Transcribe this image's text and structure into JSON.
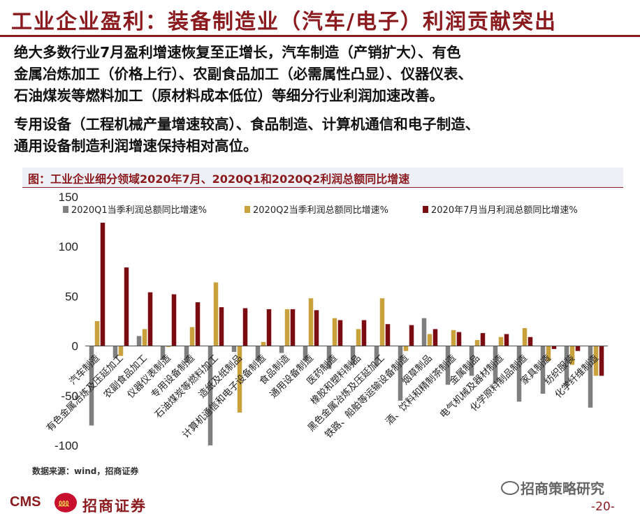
{
  "title": "工业企业盈利：装备制造业（汽车/电子）利润贡献突出",
  "paragraphs": [
    [
      "绝大多数行业7月盈利增速恢复至正增长，汽车制造（产销扩大）、有色",
      "金属冶炼加工（价格上行）、农副食品加工（必需属性凸显）、仪器仪表、",
      "石油煤炭等燃料加工（原材料成本低位）等细分行业利润加速改善。"
    ],
    [
      "专用设备（工程机械产量增速较高）、食品制造、计算机通信和电子制造、",
      "通用设备制造利润增速保持相对高位。"
    ]
  ],
  "chart_caption": "图：工业企业细分领域2020年7月、2020Q1和2020Q2利润总额同比增速",
  "chart_data": {
    "type": "bar",
    "ylim": [
      -100,
      150
    ],
    "yticks": [
      -100,
      -50,
      0,
      50,
      100,
      150
    ],
    "legend_position": "top",
    "categories": [
      "汽车制造",
      "有色金属冶炼及压延加工",
      "农副食品加工",
      "仪器仪表制造",
      "专用设备制造",
      "石油煤炭等燃料加工",
      "造纸及纸制品",
      "计算机通信和电子设备制造",
      "食品制造",
      "通用设备制造",
      "医药制造",
      "橡胶和塑料制品",
      "黑色金属冶炼及压延加工",
      "铁路、船舶等运输设备制造",
      "烟草制品",
      "酒、饮料和精制茶制造",
      "金属制品",
      "电气机械及器材制造",
      "化学原料制品制造",
      "家具制造",
      "纺织服装",
      "化学纤维制造"
    ],
    "series": [
      {
        "name": "2020Q1当季利润总额同比增速%",
        "color": "#7f7f7f",
        "values": [
          -80,
          -12,
          10,
          -14,
          -17,
          -100,
          -6,
          -15,
          -7,
          -15,
          -23,
          -19,
          -20,
          -55,
          28,
          -39,
          -30,
          -38,
          -56,
          -48,
          -40,
          -62
        ]
      },
      {
        "name": "2020Q2当季利润总额同比增速%",
        "color": "#c9a23e",
        "values": [
          25,
          -10,
          17,
          -1,
          19,
          64,
          -67,
          4,
          37,
          48,
          28,
          17,
          48,
          -5,
          12,
          16,
          6,
          9,
          18,
          -15,
          -19,
          -30
        ]
      },
      {
        "name": "2020年7月当月利润总额同比增速%",
        "color": "#7b0d12",
        "values": [
          124,
          79,
          54,
          52,
          44,
          39,
          38,
          37,
          37,
          36,
          26,
          26,
          22,
          21,
          17,
          14,
          13,
          12,
          9,
          -3,
          -5,
          -30
        ]
      }
    ]
  },
  "source": "数据来源：wind，招商证券",
  "footer": {
    "cms": "CMS",
    "brand": "招商证券",
    "wechat": "招商策略研究",
    "page": "-20-"
  }
}
